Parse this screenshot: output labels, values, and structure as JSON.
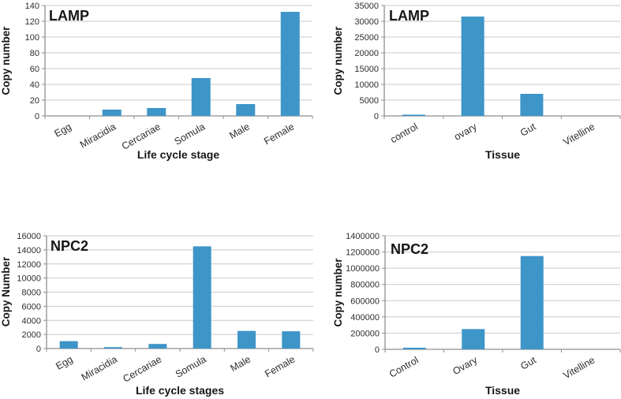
{
  "styles": {
    "bar_color": "#3E95C8",
    "grid_color": "#C9C9C9",
    "axis_color": "#8F8F8F",
    "tick_text_color": "#2E2E2E",
    "label_text_color": "#161616",
    "background_color": "#FFFFFF"
  },
  "chart_data": [
    {
      "id": "lamp-life-cycle",
      "type": "bar",
      "title": "LAMP",
      "xlabel": "Life cycle stage",
      "ylabel": "Copy number",
      "categories": [
        "Egg",
        "Miracidia",
        "Cercariae",
        "Somula",
        "Male",
        "Female"
      ],
      "values": [
        0,
        8,
        10,
        48,
        15,
        132
      ],
      "ylim": [
        0,
        140
      ],
      "ytick_step": 20,
      "yticks": [
        0,
        20,
        40,
        60,
        80,
        100,
        120,
        140
      ],
      "grid": true,
      "legend": "none"
    },
    {
      "id": "lamp-tissue",
      "type": "bar",
      "title": "LAMP",
      "xlabel": "Tissue",
      "ylabel": "Copy number",
      "categories": [
        "control",
        "ovary",
        "Gut",
        "Vitelline"
      ],
      "values": [
        400,
        31500,
        7000,
        0
      ],
      "ylim": [
        0,
        35000
      ],
      "ytick_step": 5000,
      "yticks": [
        0,
        5000,
        10000,
        15000,
        20000,
        25000,
        30000,
        35000
      ],
      "grid": true,
      "legend": "none"
    },
    {
      "id": "npc2-life-cycle",
      "type": "bar",
      "title": "NPC2",
      "xlabel": "Life cycle stages",
      "ylabel": "Copy Number",
      "categories": [
        "Egg",
        "Miracidia",
        "Cercariae",
        "Somula",
        "Male",
        "Female"
      ],
      "values": [
        1050,
        200,
        650,
        14500,
        2500,
        2450
      ],
      "ylim": [
        0,
        16000
      ],
      "ytick_step": 2000,
      "yticks": [
        0,
        2000,
        4000,
        6000,
        8000,
        10000,
        12000,
        14000,
        16000
      ],
      "grid": true,
      "legend": "none"
    },
    {
      "id": "npc2-tissue",
      "type": "bar",
      "title": "NPC2",
      "xlabel": "Tissue",
      "ylabel": "Copy number",
      "categories": [
        "Control",
        "Ovary",
        "Gut",
        "Vitelline"
      ],
      "values": [
        20000,
        250000,
        1150000,
        0
      ],
      "ylim": [
        0,
        1400000
      ],
      "ytick_step": 200000,
      "yticks": [
        0,
        200000,
        400000,
        600000,
        800000,
        1000000,
        1200000,
        1400000
      ],
      "grid": true,
      "legend": "none"
    }
  ]
}
